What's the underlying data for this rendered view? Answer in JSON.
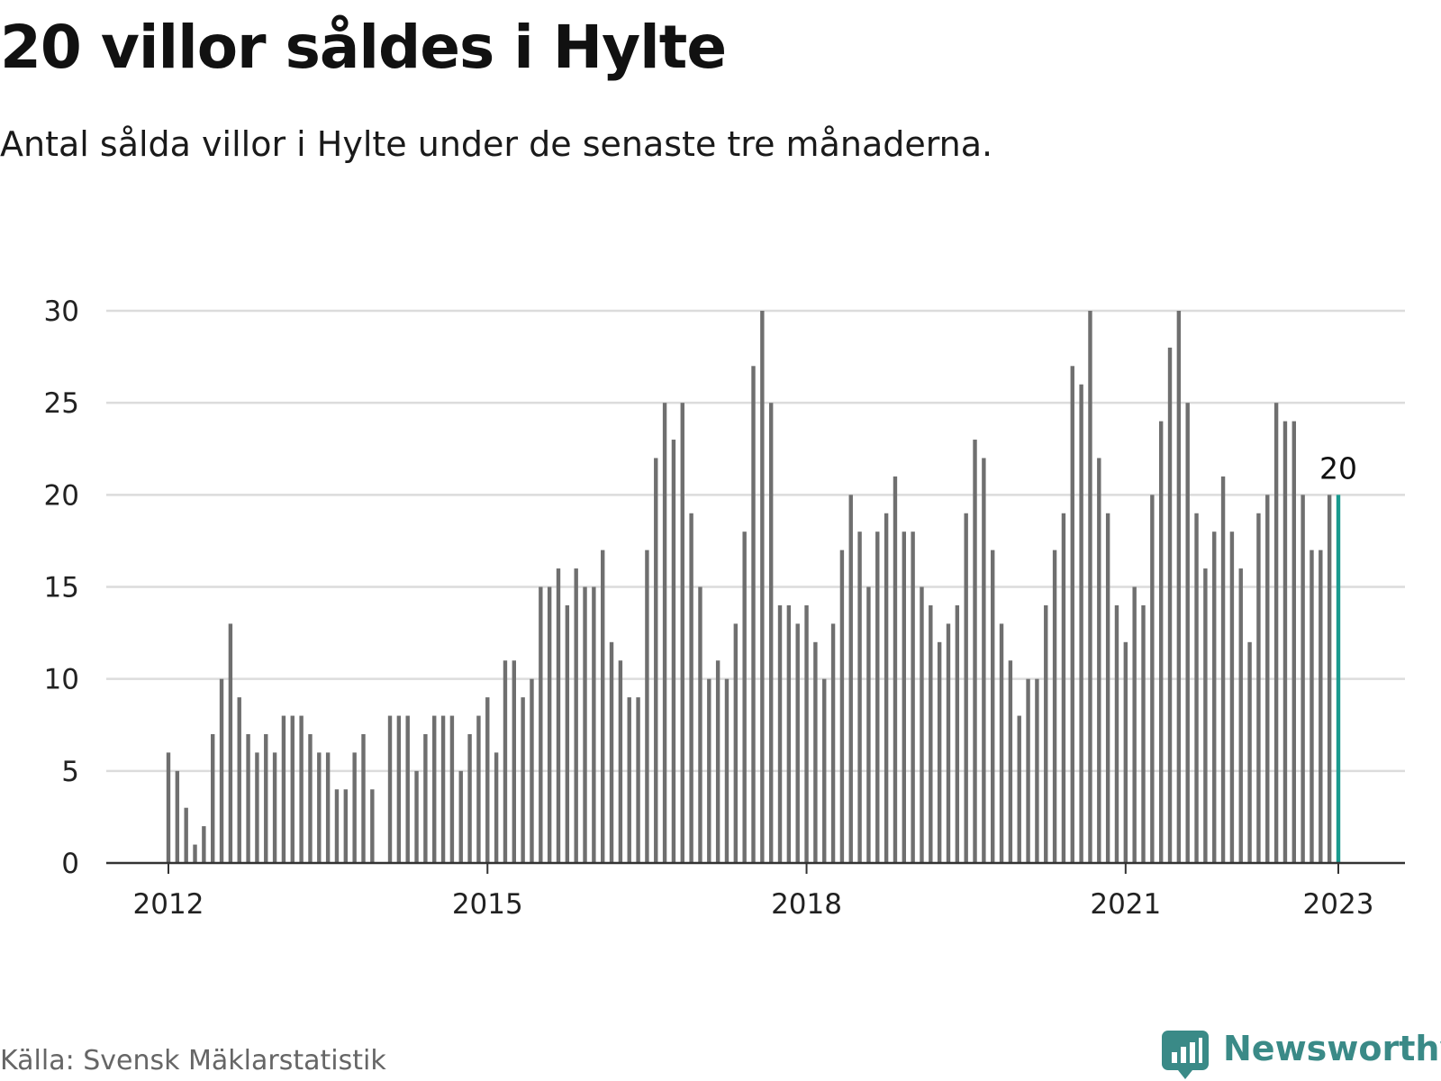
{
  "title": "20 villor såldes i Hylte",
  "subtitle": "Antal sålda villor i Hylte under de senaste tre månaderna.",
  "source": "Källa: Svensk Mäklarstatistik",
  "brand": {
    "name": "Newsworthy",
    "icon": "bar-chart-speech-bubble-icon"
  },
  "colors": {
    "bar": "#6f6f6f",
    "highlight": "#1a9a8f",
    "grid": "#dcdcdc",
    "axis": "#333333",
    "brand": "#3a8a87"
  },
  "chart_data": {
    "type": "bar",
    "title": "20 villor såldes i Hylte",
    "subtitle": "Antal sålda villor i Hylte under de senaste tre månaderna.",
    "xlabel": "",
    "ylabel": "",
    "ylim": [
      0,
      30
    ],
    "yticks": [
      0,
      5,
      10,
      15,
      20,
      25,
      30
    ],
    "xticks": [
      "2012",
      "2015",
      "2018",
      "2021",
      "2023"
    ],
    "grid": true,
    "legend": "none",
    "start": "2012-01",
    "end": "2023-01",
    "highlight": {
      "date": "2023-01",
      "label": "20"
    },
    "x": [
      "2012-01",
      "2012-02",
      "2012-03",
      "2012-04",
      "2012-05",
      "2012-06",
      "2012-07",
      "2012-08",
      "2012-09",
      "2012-10",
      "2012-11",
      "2012-12",
      "2013-01",
      "2013-02",
      "2013-03",
      "2013-04",
      "2013-05",
      "2013-06",
      "2013-07",
      "2013-08",
      "2013-09",
      "2013-10",
      "2013-11",
      "2013-12",
      "2014-01",
      "2014-02",
      "2014-03",
      "2014-04",
      "2014-05",
      "2014-06",
      "2014-07",
      "2014-08",
      "2014-09",
      "2014-10",
      "2014-11",
      "2014-12",
      "2015-01",
      "2015-02",
      "2015-03",
      "2015-04",
      "2015-05",
      "2015-06",
      "2015-07",
      "2015-08",
      "2015-09",
      "2015-10",
      "2015-11",
      "2015-12",
      "2016-01",
      "2016-02",
      "2016-03",
      "2016-04",
      "2016-05",
      "2016-06",
      "2016-07",
      "2016-08",
      "2016-09",
      "2016-10",
      "2016-11",
      "2016-12",
      "2017-01",
      "2017-02",
      "2017-03",
      "2017-04",
      "2017-05",
      "2017-06",
      "2017-07",
      "2017-08",
      "2017-09",
      "2017-10",
      "2017-11",
      "2017-12",
      "2018-01",
      "2018-02",
      "2018-03",
      "2018-04",
      "2018-05",
      "2018-06",
      "2018-07",
      "2018-08",
      "2018-09",
      "2018-10",
      "2018-11",
      "2018-12",
      "2019-01",
      "2019-02",
      "2019-03",
      "2019-04",
      "2019-05",
      "2019-06",
      "2019-07",
      "2019-08",
      "2019-09",
      "2019-10",
      "2019-11",
      "2019-12",
      "2020-01",
      "2020-02",
      "2020-03",
      "2020-04",
      "2020-05",
      "2020-06",
      "2020-07",
      "2020-08",
      "2020-09",
      "2020-10",
      "2020-11",
      "2020-12",
      "2021-01",
      "2021-02",
      "2021-03",
      "2021-04",
      "2021-05",
      "2021-06",
      "2021-07",
      "2021-08",
      "2021-09",
      "2021-10",
      "2021-11",
      "2021-12",
      "2022-01",
      "2022-02",
      "2022-03",
      "2022-04",
      "2022-05",
      "2022-06",
      "2022-07",
      "2022-08",
      "2022-09",
      "2022-10",
      "2022-11",
      "2022-12",
      "2023-01"
    ],
    "values": [
      6,
      5,
      3,
      1,
      2,
      7,
      10,
      13,
      9,
      7,
      6,
      7,
      6,
      8,
      8,
      8,
      7,
      6,
      6,
      4,
      4,
      6,
      7,
      4,
      0,
      8,
      8,
      8,
      5,
      7,
      8,
      8,
      8,
      5,
      7,
      8,
      9,
      6,
      11,
      11,
      9,
      10,
      15,
      15,
      16,
      14,
      16,
      15,
      15,
      17,
      12,
      11,
      9,
      9,
      17,
      22,
      25,
      23,
      25,
      19,
      15,
      10,
      11,
      10,
      13,
      18,
      27,
      30,
      25,
      14,
      14,
      13,
      14,
      12,
      10,
      13,
      17,
      20,
      18,
      15,
      18,
      19,
      21,
      18,
      18,
      15,
      14,
      12,
      13,
      14,
      19,
      23,
      22,
      17,
      13,
      11,
      8,
      10,
      10,
      14,
      17,
      19,
      27,
      26,
      30,
      22,
      19,
      14,
      12,
      15,
      14,
      20,
      24,
      28,
      30,
      25,
      19,
      16,
      18,
      21,
      18,
      16,
      12,
      19,
      20,
      25,
      24,
      24,
      20,
      17,
      17,
      20,
      20
    ]
  }
}
